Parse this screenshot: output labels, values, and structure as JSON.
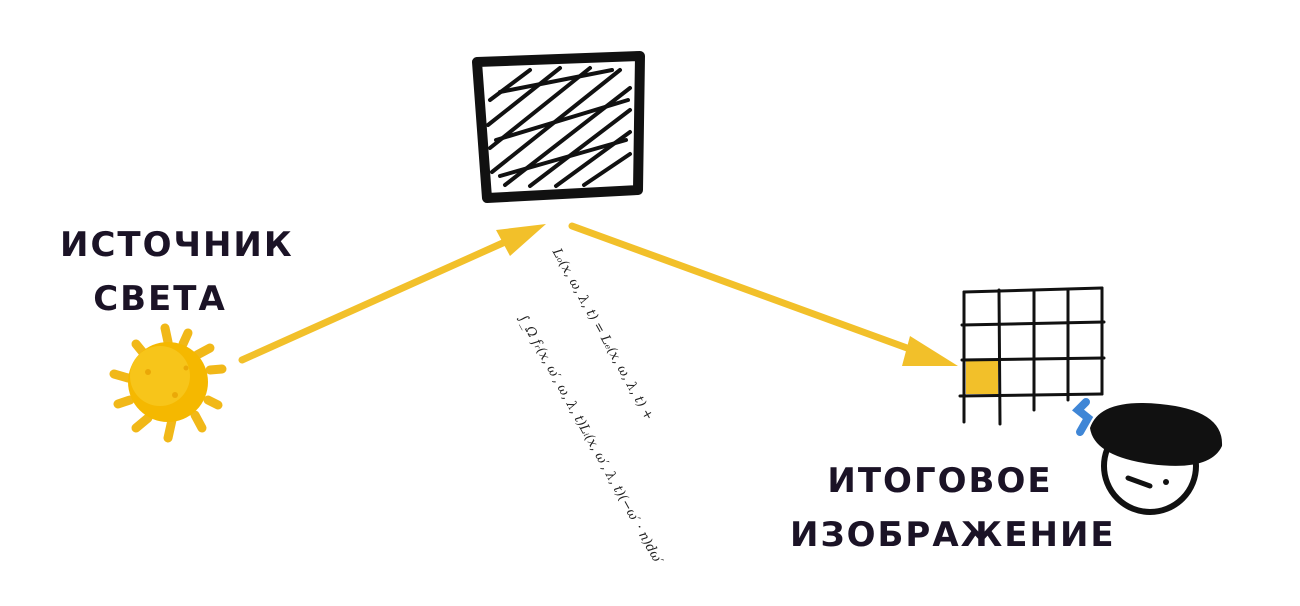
{
  "labels": {
    "light_source_line1": "ИСТОЧНИК",
    "light_source_line2": "СВЕТА",
    "final_image_line1": "ИТОГОВОЕ",
    "final_image_line2": "ИЗОБРАЖЕНИЕ"
  },
  "equation": {
    "line1": "Lₒ(x, ω, λ, t) = Lₑ(x, ω, λ, t) +",
    "line2": "∫_Ω fᵣ(x, ω′, ω, λ, t)Lᵢ(x, ω′, λ, t)(−ω′ · n)dω′"
  },
  "colors": {
    "arrow": "#f2c02a",
    "sun": "#f5b800",
    "sun_dark": "#e59c00",
    "ink": "#111111",
    "pixel": "#f2c02a",
    "text": "#1b1326",
    "accent_blue": "#3f86d6"
  },
  "icons": [
    "sun-icon",
    "surface-icon",
    "pixel-grid-icon",
    "viewer-eye-icon"
  ]
}
